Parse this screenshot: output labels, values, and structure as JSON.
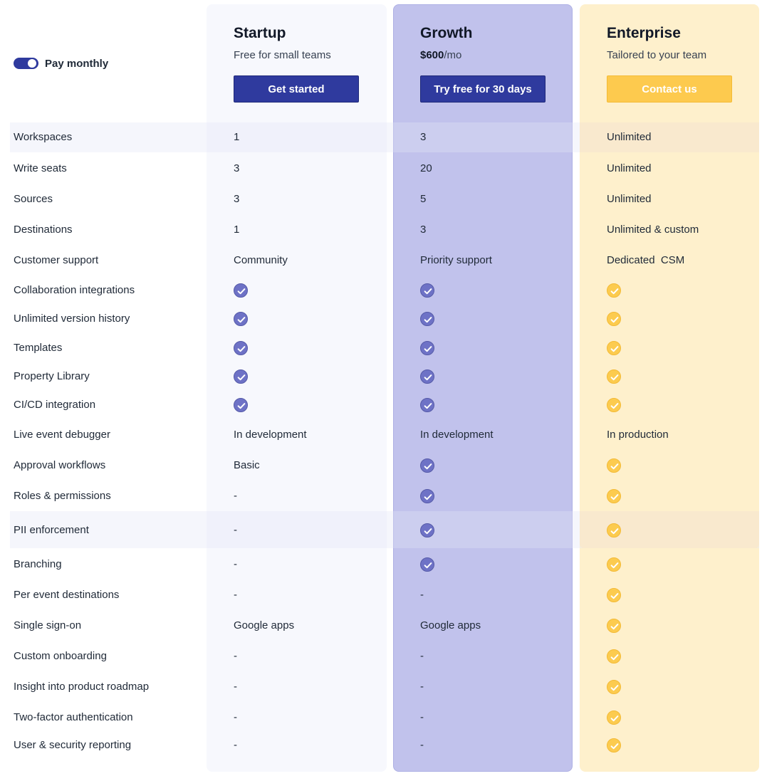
{
  "billing_toggle": {
    "label": "Pay monthly",
    "state": "on"
  },
  "plans": [
    {
      "key": "startup",
      "name": "Startup",
      "subtitle": "Free for small teams",
      "price": "",
      "price_suffix": "",
      "cta": "Get started"
    },
    {
      "key": "growth",
      "name": "Growth",
      "subtitle": "",
      "price": "$600",
      "price_suffix": "/mo",
      "cta": "Try free for 30 days"
    },
    {
      "key": "enterprise",
      "name": "Enterprise",
      "subtitle": "Tailored to your team",
      "price": "",
      "price_suffix": "",
      "cta": "Contact us"
    }
  ],
  "colors": {
    "primary": "#2f3a9e",
    "growth_column": "#c1c2ec",
    "enterprise_column": "#fef0cc",
    "gold": "#fccb4f",
    "check_blue": "#6e72c6"
  },
  "icons": {
    "included": "check-circle-icon"
  },
  "features": [
    {
      "label": "Workspaces",
      "startup": "1",
      "growth": "3",
      "enterprise": "Unlimited"
    },
    {
      "label": "Write seats",
      "startup": "3",
      "growth": "20",
      "enterprise": "Unlimited"
    },
    {
      "label": "Sources",
      "startup": "3",
      "growth": "5",
      "enterprise": "Unlimited"
    },
    {
      "label": "Destinations",
      "startup": "1",
      "growth": "3",
      "enterprise": "Unlimited & custom"
    },
    {
      "label": "Customer support",
      "startup": "Community",
      "growth": "Priority support",
      "enterprise": "Dedicated  CSM"
    },
    {
      "label": "Collaboration integrations",
      "startup": "check",
      "growth": "check",
      "enterprise": "check"
    },
    {
      "label": "Unlimited version history",
      "startup": "check",
      "growth": "check",
      "enterprise": "check"
    },
    {
      "label": "Templates",
      "startup": "check",
      "growth": "check",
      "enterprise": "check"
    },
    {
      "label": "Property Library",
      "startup": "check",
      "growth": "check",
      "enterprise": "check"
    },
    {
      "label": "CI/CD integration",
      "startup": "check",
      "growth": "check",
      "enterprise": "check"
    },
    {
      "label": "Live event debugger",
      "startup": "In development",
      "growth": "In development",
      "enterprise": "In production"
    },
    {
      "label": "Approval workflows",
      "startup": "Basic",
      "growth": "check",
      "enterprise": "check"
    },
    {
      "label": "Roles & permissions",
      "startup": "-",
      "growth": "check",
      "enterprise": "check"
    },
    {
      "label": "PII enforcement",
      "startup": "-",
      "growth": "check",
      "enterprise": "check"
    },
    {
      "label": "Branching",
      "startup": "-",
      "growth": "check",
      "enterprise": "check"
    },
    {
      "label": "Per event destinations",
      "startup": "-",
      "growth": "-",
      "enterprise": "check"
    },
    {
      "label": "Single sign-on",
      "startup": "Google apps",
      "growth": "Google apps",
      "enterprise": "check"
    },
    {
      "label": "Custom onboarding",
      "startup": "-",
      "growth": "-",
      "enterprise": "check"
    },
    {
      "label": "Insight into product roadmap",
      "startup": "-",
      "growth": "-",
      "enterprise": "check"
    },
    {
      "label": "Two-factor authentication",
      "startup": "-",
      "growth": "-",
      "enterprise": "check"
    },
    {
      "label": "User & security reporting",
      "startup": "-",
      "growth": "-",
      "enterprise": "check"
    }
  ]
}
